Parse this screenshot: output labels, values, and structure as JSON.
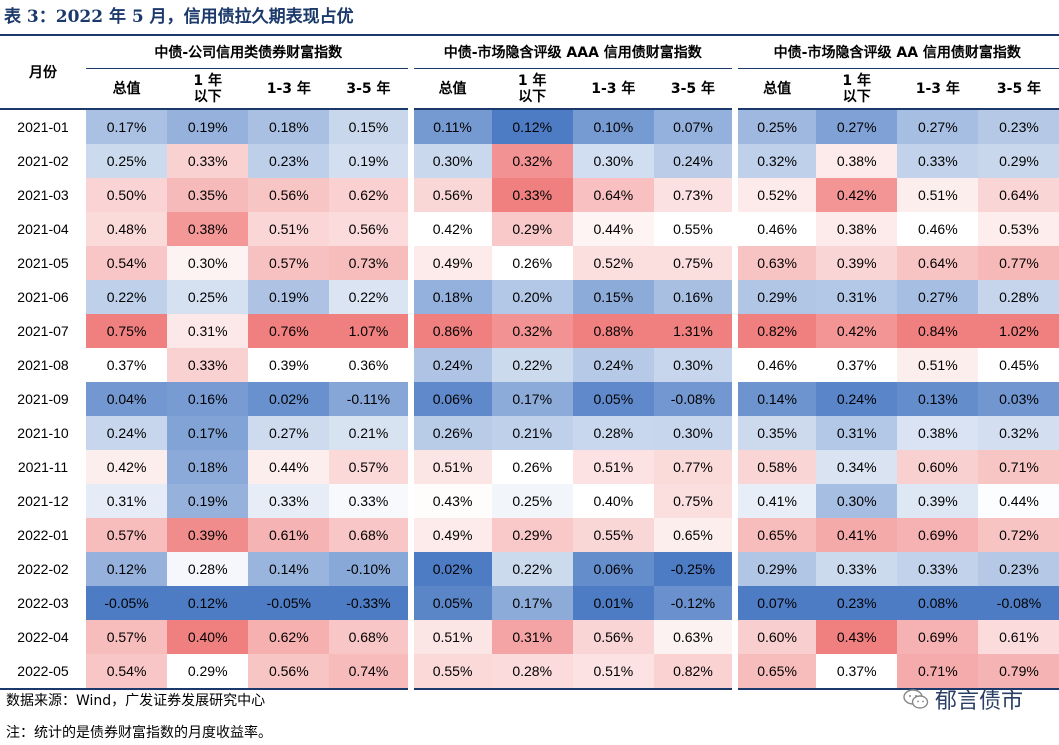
{
  "title": "表 3：2022 年 5 月，信用债拉久期表现占优",
  "header": {
    "month_label": "月份",
    "groups": [
      "中债-公司信用类债券财富指数",
      "中债-市场隐含评级 AAA 信用债财富指数",
      "中债-市场隐含评级 AA 信用债财富指数"
    ],
    "subcolumns": [
      "总值",
      "1 年\n以下",
      "1-3 年",
      "3-5 年"
    ]
  },
  "rows": [
    {
      "month": "2021-01",
      "values": [
        "0.17%",
        "0.19%",
        "0.18%",
        "0.15%",
        "0.11%",
        "0.12%",
        "0.10%",
        "0.07%",
        "0.25%",
        "0.27%",
        "0.27%",
        "0.23%"
      ]
    },
    {
      "month": "2021-02",
      "values": [
        "0.25%",
        "0.33%",
        "0.23%",
        "0.19%",
        "0.30%",
        "0.32%",
        "0.30%",
        "0.24%",
        "0.32%",
        "0.38%",
        "0.33%",
        "0.29%"
      ]
    },
    {
      "month": "2021-03",
      "values": [
        "0.50%",
        "0.35%",
        "0.56%",
        "0.62%",
        "0.56%",
        "0.33%",
        "0.64%",
        "0.73%",
        "0.52%",
        "0.42%",
        "0.51%",
        "0.64%"
      ]
    },
    {
      "month": "2021-04",
      "values": [
        "0.48%",
        "0.38%",
        "0.51%",
        "0.56%",
        "0.42%",
        "0.29%",
        "0.44%",
        "0.55%",
        "0.46%",
        "0.38%",
        "0.46%",
        "0.53%"
      ]
    },
    {
      "month": "2021-05",
      "values": [
        "0.54%",
        "0.30%",
        "0.57%",
        "0.73%",
        "0.49%",
        "0.26%",
        "0.52%",
        "0.75%",
        "0.63%",
        "0.39%",
        "0.64%",
        "0.77%"
      ]
    },
    {
      "month": "2021-06",
      "values": [
        "0.22%",
        "0.25%",
        "0.19%",
        "0.22%",
        "0.18%",
        "0.20%",
        "0.15%",
        "0.16%",
        "0.29%",
        "0.31%",
        "0.27%",
        "0.28%"
      ]
    },
    {
      "month": "2021-07",
      "values": [
        "0.75%",
        "0.31%",
        "0.76%",
        "1.07%",
        "0.86%",
        "0.32%",
        "0.88%",
        "1.31%",
        "0.82%",
        "0.42%",
        "0.84%",
        "1.02%"
      ]
    },
    {
      "month": "2021-08",
      "values": [
        "0.37%",
        "0.33%",
        "0.39%",
        "0.36%",
        "0.24%",
        "0.22%",
        "0.24%",
        "0.30%",
        "0.46%",
        "0.37%",
        "0.51%",
        "0.45%"
      ]
    },
    {
      "month": "2021-09",
      "values": [
        "0.04%",
        "0.16%",
        "0.02%",
        "-0.11%",
        "0.06%",
        "0.17%",
        "0.05%",
        "-0.08%",
        "0.14%",
        "0.24%",
        "0.13%",
        "0.03%"
      ]
    },
    {
      "month": "2021-10",
      "values": [
        "0.24%",
        "0.17%",
        "0.27%",
        "0.21%",
        "0.26%",
        "0.21%",
        "0.28%",
        "0.30%",
        "0.35%",
        "0.31%",
        "0.38%",
        "0.32%"
      ]
    },
    {
      "month": "2021-11",
      "values": [
        "0.42%",
        "0.18%",
        "0.44%",
        "0.57%",
        "0.51%",
        "0.26%",
        "0.51%",
        "0.77%",
        "0.58%",
        "0.34%",
        "0.60%",
        "0.71%"
      ]
    },
    {
      "month": "2021-12",
      "values": [
        "0.31%",
        "0.19%",
        "0.33%",
        "0.33%",
        "0.43%",
        "0.25%",
        "0.40%",
        "0.75%",
        "0.41%",
        "0.30%",
        "0.39%",
        "0.44%"
      ]
    },
    {
      "month": "2022-01",
      "values": [
        "0.57%",
        "0.39%",
        "0.61%",
        "0.68%",
        "0.49%",
        "0.29%",
        "0.55%",
        "0.65%",
        "0.65%",
        "0.41%",
        "0.69%",
        "0.72%"
      ]
    },
    {
      "month": "2022-02",
      "values": [
        "0.12%",
        "0.28%",
        "0.14%",
        "-0.10%",
        "0.02%",
        "0.22%",
        "0.06%",
        "-0.25%",
        "0.29%",
        "0.33%",
        "0.33%",
        "0.23%"
      ]
    },
    {
      "month": "2022-03",
      "values": [
        "-0.05%",
        "0.12%",
        "-0.05%",
        "-0.33%",
        "0.05%",
        "0.17%",
        "0.01%",
        "-0.12%",
        "0.07%",
        "0.23%",
        "0.08%",
        "-0.08%"
      ]
    },
    {
      "month": "2022-04",
      "values": [
        "0.57%",
        "0.40%",
        "0.62%",
        "0.68%",
        "0.51%",
        "0.31%",
        "0.56%",
        "0.63%",
        "0.60%",
        "0.43%",
        "0.69%",
        "0.61%"
      ]
    },
    {
      "month": "2022-05",
      "values": [
        "0.54%",
        "0.29%",
        "0.56%",
        "0.74%",
        "0.55%",
        "0.28%",
        "0.51%",
        "0.82%",
        "0.65%",
        "0.37%",
        "0.71%",
        "0.79%"
      ]
    }
  ],
  "colors": {
    "title": "#1b3a6b",
    "low": "#4d7cc4",
    "mid": "#ffffff",
    "high": "#f08080"
  },
  "footer": {
    "source": "数据来源：Wind，广发证券发展研究中心",
    "note": "注：统计的是债券财富指数的月度收益率。",
    "watermark": "郁言债市"
  }
}
